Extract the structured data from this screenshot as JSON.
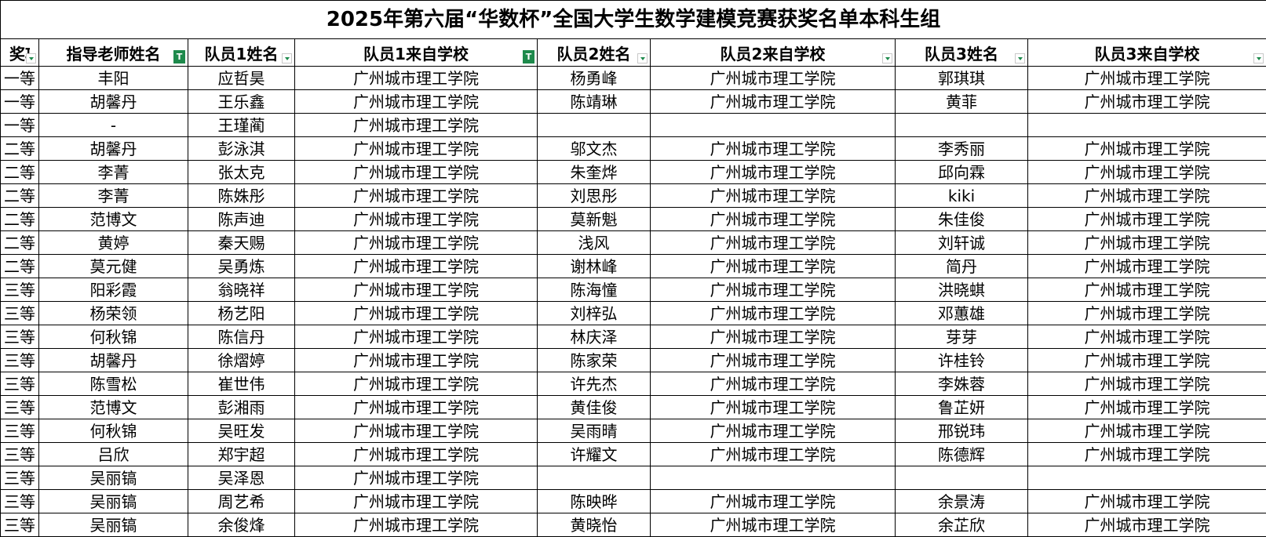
{
  "title": "2025年第六届“华数杯”全国大学生数学建模竞赛获奖名单本科生组",
  "headers": [
    {
      "label": "奖项",
      "control": "dropdown"
    },
    {
      "label": "指导老师姓名",
      "control": "filter-active"
    },
    {
      "label": "队员1姓名",
      "control": "dropdown"
    },
    {
      "label": "队员1来自学校",
      "control": "filter-active"
    },
    {
      "label": "队员2姓名",
      "control": "dropdown"
    },
    {
      "label": "队员2来自学校",
      "control": "dropdown"
    },
    {
      "label": "队员3姓名",
      "control": "dropdown"
    },
    {
      "label": "队员3来自学校",
      "control": "dropdown"
    }
  ],
  "rows": [
    [
      "一等",
      "丰阳",
      "应哲昊",
      "广州城市理工学院",
      "杨勇峰",
      "广州城市理工学院",
      "郭琪琪",
      "广州城市理工学院"
    ],
    [
      "一等",
      "胡馨丹",
      "王乐鑫",
      "广州城市理工学院",
      "陈靖琳",
      "广州城市理工学院",
      "黄菲",
      "广州城市理工学院"
    ],
    [
      "一等",
      "-",
      "王瑾蔺",
      "广州城市理工学院",
      "",
      "",
      "",
      ""
    ],
    [
      "二等",
      "胡馨丹",
      "彭泳淇",
      "广州城市理工学院",
      "邬文杰",
      "广州城市理工学院",
      "李秀丽",
      "广州城市理工学院"
    ],
    [
      "二等",
      "李菁",
      "张太克",
      "广州城市理工学院",
      "朱奎烨",
      "广州城市理工学院",
      "邱向霖",
      "广州城市理工学院"
    ],
    [
      "二等",
      "李菁",
      "陈姝彤",
      "广州城市理工学院",
      "刘思彤",
      "广州城市理工学院",
      "kiki",
      "广州城市理工学院"
    ],
    [
      "二等",
      "范博文",
      "陈声迪",
      "广州城市理工学院",
      "莫新魁",
      "广州城市理工学院",
      "朱佳俊",
      "广州城市理工学院"
    ],
    [
      "二等",
      "黄婷",
      "秦天赐",
      "广州城市理工学院",
      "浅风",
      "广州城市理工学院",
      "刘轩诚",
      "广州城市理工学院"
    ],
    [
      "二等",
      "莫元健",
      "吴勇炼",
      "广州城市理工学院",
      "谢林峰",
      "广州城市理工学院",
      "简丹",
      "广州城市理工学院"
    ],
    [
      "三等",
      "阳彩霞",
      "翁晓祥",
      "广州城市理工学院",
      "陈海憧",
      "广州城市理工学院",
      "洪晓蜞",
      "广州城市理工学院"
    ],
    [
      "三等",
      "杨荣领",
      "杨艺阳",
      "广州城市理工学院",
      "刘梓弘",
      "广州城市理工学院",
      "邓蕙雄",
      "广州城市理工学院"
    ],
    [
      "三等",
      "何秋锦",
      "陈信丹",
      "广州城市理工学院",
      "林庆泽",
      "广州城市理工学院",
      "芽芽",
      "广州城市理工学院"
    ],
    [
      "三等",
      "胡馨丹",
      "徐熠婷",
      "广州城市理工学院",
      "陈家荣",
      "广州城市理工学院",
      "许桂铃",
      "广州城市理工学院"
    ],
    [
      "三等",
      "陈雪松",
      "崔世伟",
      "广州城市理工学院",
      "许先杰",
      "广州城市理工学院",
      "李姝蓉",
      "广州城市理工学院"
    ],
    [
      "三等",
      "范博文",
      "彭湘雨",
      "广州城市理工学院",
      "黄佳俊",
      "广州城市理工学院",
      "鲁芷妍",
      "广州城市理工学院"
    ],
    [
      "三等",
      "何秋锦",
      "吴旺发",
      "广州城市理工学院",
      "吴雨晴",
      "广州城市理工学院",
      "邢锐玮",
      "广州城市理工学院"
    ],
    [
      "三等",
      "吕欣",
      "郑宇超",
      "广州城市理工学院",
      "许耀文",
      "广州城市理工学院",
      "陈德辉",
      "广州城市理工学院"
    ],
    [
      "三等",
      "吴丽镐",
      "吴泽恩",
      "广州城市理工学院",
      "",
      "",
      "",
      ""
    ],
    [
      "三等",
      "吴丽镐",
      "周艺希",
      "广州城市理工学院",
      "陈映晔",
      "广州城市理工学院",
      "余景涛",
      "广州城市理工学院"
    ],
    [
      "三等",
      "吴丽镐",
      "余俊烽",
      "广州城市理工学院",
      "黄晓怡",
      "广州城市理工学院",
      "余芷欣",
      "广州城市理工学院"
    ]
  ],
  "colors": {
    "filter_green": "#1e8a4c",
    "border": "#000000"
  }
}
